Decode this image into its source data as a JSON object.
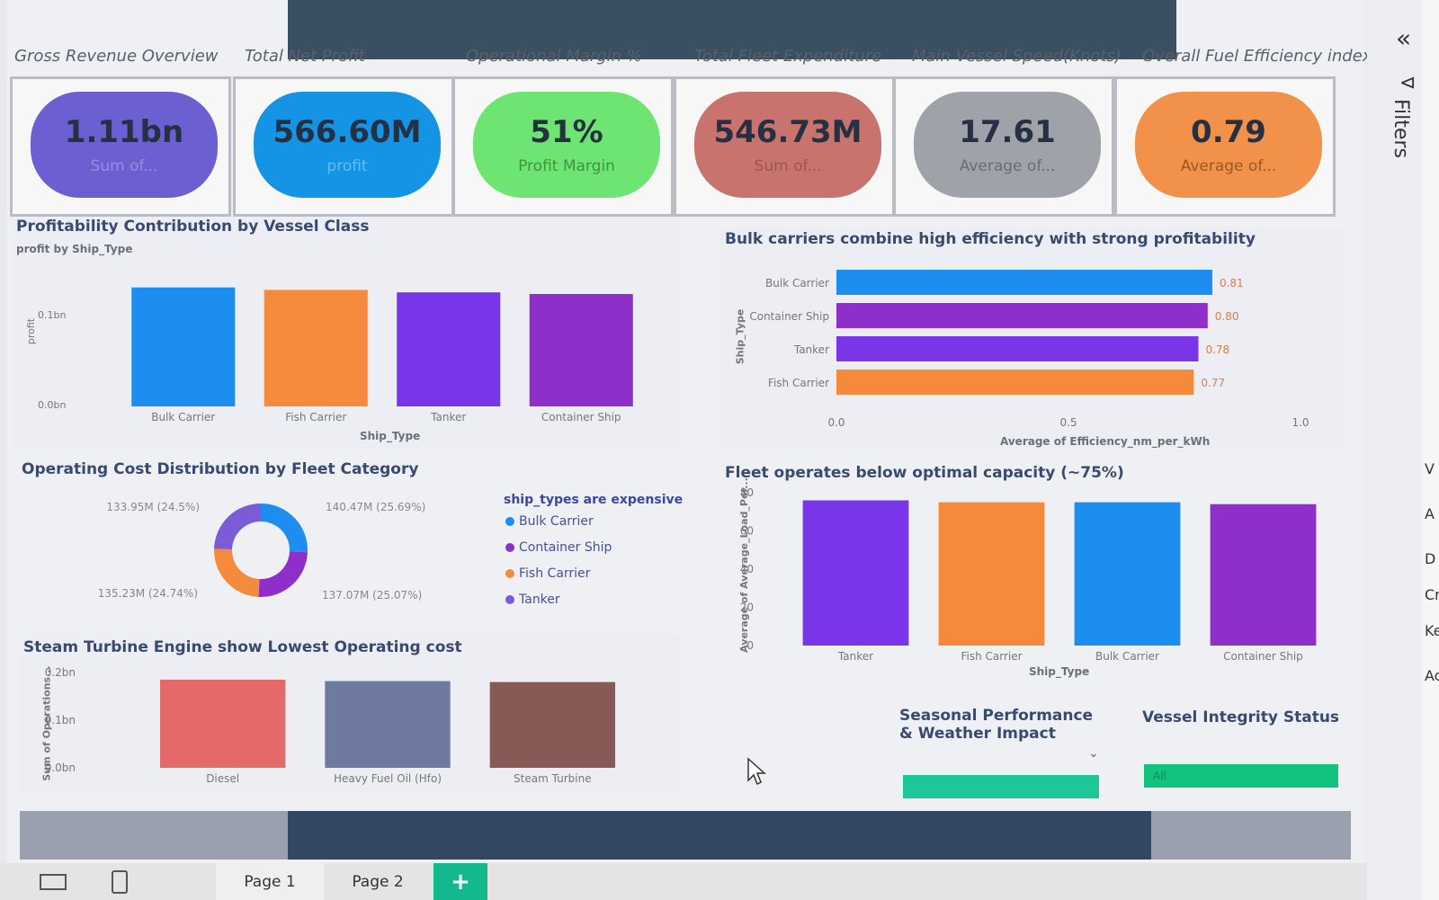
{
  "kpis": [
    {
      "title": "Gross Revenue Overview",
      "value": "1.11bn",
      "sub": "Sum of...",
      "color": "#6c5fd1",
      "sub_color": "#a49ee0"
    },
    {
      "title": "Total Net Profit",
      "value": "566.60M",
      "sub": "profit",
      "color": "#1594e6",
      "sub_color": "#80c6f2"
    },
    {
      "title": "Operational Margin %",
      "value": "51%",
      "sub": "Profit Margin",
      "color": "#6ee572",
      "sub_color": "#2f7a33"
    },
    {
      "title": "Total Fleet Expenditure",
      "value": "546.73M",
      "sub": "Sum of...",
      "color": "#c9736f",
      "sub_color": "#8a4b4b"
    },
    {
      "title": "Main Vessel Speed(Knots)",
      "value": "17.61",
      "sub": "Average of...",
      "color": "#9fa2a8",
      "sub_color": "#555a62"
    },
    {
      "title": "Overall Fuel Efficiency index",
      "value": "0.79",
      "sub": "Average of...",
      "color": "#f2924a",
      "sub_color": "#7a4518"
    }
  ],
  "profit_panel": {
    "title": "Profitability Contribution by Vessel Class",
    "subtitle": "profit by Ship_Type",
    "ylabel": "profit",
    "xlabel": "Ship_Type",
    "ticks": [
      "0.1bn",
      "0.0bn"
    ]
  },
  "efficiency_panel": {
    "title": "Bulk carriers combine high efficiency with strong profitability",
    "ylabel": "Ship_Type",
    "xlabel": "Average of Efficiency_nm_per_kWh",
    "ticks": [
      "0.0",
      "0.5",
      "1.0"
    ]
  },
  "cost_panel": {
    "title": "Operating Cost Distribution by Fleet Category",
    "legend_title": "ship_types are expensive",
    "labels": [
      "133.95M (24.5%)",
      "140.47M (25.69%)",
      "135.23M (24.74%)",
      "137.07M (25.07%)"
    ]
  },
  "load_panel": {
    "title": "Fleet operates below optimal capacity (~75%)",
    "ylabel": "Average of Average_Load_Per...",
    "xlabel": "Ship_Type",
    "ticks": [
      "80",
      "60",
      "40",
      "20",
      "0"
    ]
  },
  "engine_panel": {
    "title": "Steam Turbine Engine show Lowest Operating cost",
    "ylabel": "Sum of Operations...",
    "ticks": [
      "0.2bn",
      "0.1bn",
      "0.0bn"
    ]
  },
  "slicers": {
    "seasonal_title": "Seasonal Performance & Weather Impact",
    "integrity_title": "Vessel Integrity Status",
    "integrity_value": "All"
  },
  "tabs": {
    "page1": "Page 1",
    "page2": "Page 2",
    "add": "+"
  },
  "right_pane": {
    "filters_label": "Filters",
    "collapse": "«",
    "edge_letters": [
      "V",
      "A",
      "D",
      "Cr",
      "Ke",
      "Ac"
    ]
  },
  "chart_data": [
    {
      "type": "bar",
      "title": "Profitability Contribution by Vessel Class",
      "subtitle": "profit by Ship_Type",
      "categories": [
        "Bulk Carrier",
        "Fish Carrier",
        "Tanker",
        "Container Ship"
      ],
      "values": [
        0.145,
        0.142,
        0.139,
        0.137
      ],
      "colors": [
        "#1d8ef0",
        "#f58a3d",
        "#7b35e8",
        "#8e2fc9"
      ],
      "xlabel": "Ship_Type",
      "ylabel": "profit",
      "ylim": [
        0,
        0.16
      ],
      "grid": false
    },
    {
      "type": "bar",
      "orientation": "horizontal",
      "title": "Bulk carriers combine high efficiency with strong profitability",
      "categories": [
        "Bulk Carrier",
        "Container Ship",
        "Tanker",
        "Fish Carrier"
      ],
      "values": [
        0.81,
        0.8,
        0.78,
        0.77
      ],
      "data_labels": [
        "0.81",
        "0.80",
        "0.78",
        "0.77"
      ],
      "colors": [
        "#1d8ef0",
        "#8e2fc9",
        "#7b35e8",
        "#f58a3d"
      ],
      "xlabel": "Average of Efficiency_nm_per_kWh",
      "ylabel": "Ship_Type",
      "xlim": [
        0,
        1.0
      ],
      "grid": false
    },
    {
      "type": "pie",
      "donut": true,
      "title": "Operating Cost Distribution by Fleet Category",
      "legend_title": "ship_types are expensive",
      "categories": [
        "Bulk Carrier",
        "Container Ship",
        "Fish Carrier",
        "Tanker"
      ],
      "values": [
        140.47,
        137.07,
        135.23,
        133.95
      ],
      "data_labels": [
        "140.47M (25.69%)",
        "137.07M (25.07%)",
        "135.23M (24.74%)",
        "133.95M (24.5%)"
      ],
      "colors": [
        "#1d8ef0",
        "#8e2fc9",
        "#f58a3d",
        "#7b5bd6"
      ],
      "legend": "right"
    },
    {
      "type": "bar",
      "title": "Fleet operates below optimal capacity (~75%)",
      "categories": [
        "Tanker",
        "Fish Carrier",
        "Bulk Carrier",
        "Container Ship"
      ],
      "values": [
        76,
        75,
        75,
        74
      ],
      "colors": [
        "#7b35e8",
        "#f58a3d",
        "#1d8ef0",
        "#8e2fc9"
      ],
      "xlabel": "Ship_Type",
      "ylabel": "Average of Average_Load_Per...",
      "ylim": [
        0,
        80
      ],
      "grid": false
    },
    {
      "type": "bar",
      "title": "Steam Turbine Engine show Lowest Operating cost",
      "categories": [
        "Diesel",
        "Heavy Fuel Oil (Hfo)",
        "Steam Turbine"
      ],
      "values": [
        0.185,
        0.182,
        0.18
      ],
      "colors": [
        "#e46a6a",
        "#6e7aa0",
        "#875a55"
      ],
      "ylabel": "Sum of Operations...",
      "ylim": [
        0,
        0.2
      ],
      "grid": false
    }
  ]
}
